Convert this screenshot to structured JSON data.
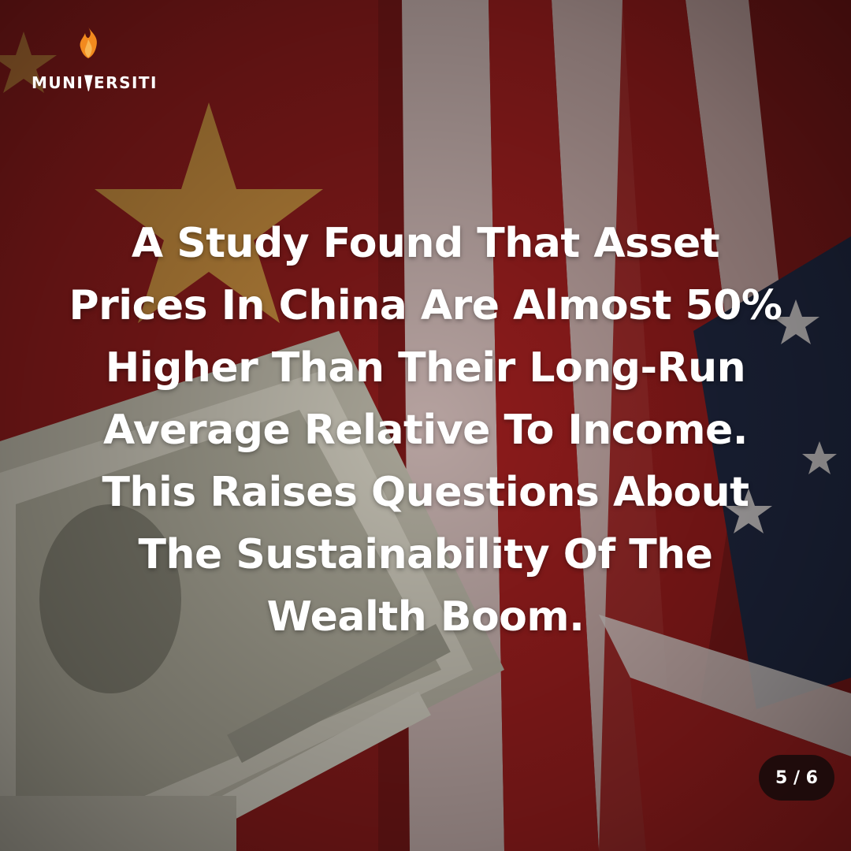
{
  "brand": {
    "logo_left": "MUNI",
    "logo_right": "ERSITI",
    "flame_color": "#f28a1e"
  },
  "headline": {
    "lines": [
      "A Study Found That Asset",
      "Prices In China Are Almost 50%",
      "Higher Than Their Long-Run",
      "Average Relative To Income.",
      "This Raises Questions About",
      "The Sustainability Of The",
      "Wealth Boom."
    ]
  },
  "pager": {
    "label": "5 / 6"
  },
  "background": {
    "description_icons": [
      "china-flag-star-icon",
      "us-flag-stripes",
      "dollar-bills-image"
    ],
    "colors": {
      "red": "#9b1d1d",
      "dark_red": "#5a1212",
      "white_stripe": "#d9d2cf",
      "navy": "#1f2740",
      "bill": "#c9c5b6"
    }
  }
}
